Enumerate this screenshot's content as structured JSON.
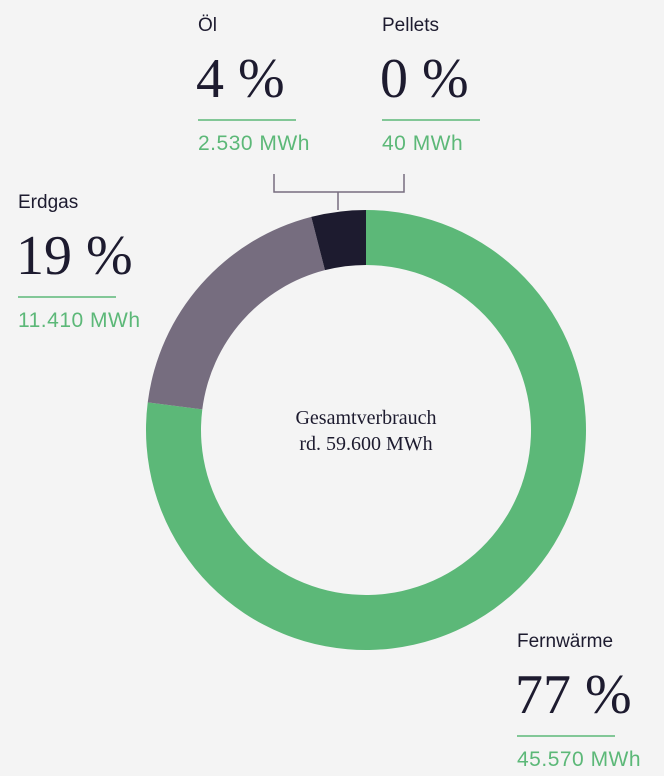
{
  "chart_data": {
    "type": "donut",
    "categories": [
      "Fernwärme",
      "Erdgas",
      "Öl",
      "Pellets"
    ],
    "values": [
      77,
      19,
      4,
      0
    ],
    "value_labels": [
      "77 %",
      "19 %",
      "4 %",
      "0 %"
    ],
    "energy": [
      45570,
      11410,
      2530,
      40
    ],
    "energy_labels": [
      "45.570 MWh",
      "11.410 MWh",
      "2.530 MWh",
      "40 MWh"
    ],
    "colors": [
      "#5cb878",
      "#766d7f",
      "#1d1b2f"
    ],
    "center_text": [
      "Gesamtverbrauch",
      "rd. 59.600 MWh"
    ]
  }
}
